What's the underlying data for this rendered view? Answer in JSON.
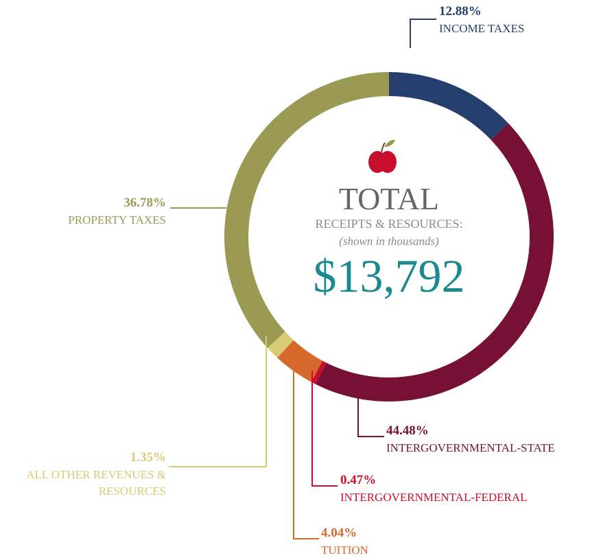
{
  "chart_data": {
    "type": "donut",
    "categories": [
      "INCOME TAXES",
      "INTERGOVERNMENTAL-STATE",
      "INTERGOVERNMENTAL-FEDERAL",
      "TUITION",
      "ALL OTHER REVENUES & RESOURCES",
      "PROPERTY TAXES"
    ],
    "values": [
      12.88,
      44.48,
      0.47,
      4.04,
      1.35,
      36.78
    ],
    "value_labels": [
      "12.88%",
      "44.48%",
      "0.47%",
      "4.04%",
      "1.35%",
      "36.78%"
    ],
    "colors": [
      "#243f6e",
      "#761035",
      "#c8102e",
      "#d5682a",
      "#d7cb74",
      "#9a9a55"
    ],
    "center_label": {
      "title": "TOTAL",
      "subtitle": "RECEIPTS & RESOURCES:",
      "note": "(shown in thousands)",
      "total": "$13,792"
    }
  }
}
